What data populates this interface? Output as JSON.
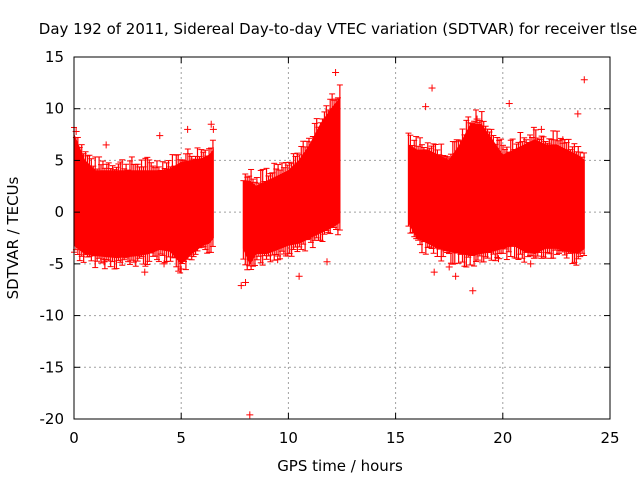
{
  "chart_data": {
    "type": "scatter",
    "title": "Day 192 of 2011, Sidereal Day-to-day VTEC variation (SDTVAR) for receiver tlse",
    "xlabel": "GPS time / hours",
    "ylabel": "SDTVAR / TECUs",
    "xlim": [
      0,
      25
    ],
    "ylim": [
      -20,
      15
    ],
    "xticks": [
      0,
      5,
      10,
      15,
      20,
      25
    ],
    "yticks": [
      -20,
      -15,
      -10,
      -5,
      0,
      5,
      10,
      15
    ],
    "grid": true,
    "marker": "plus",
    "color": "#ff0000",
    "envelope": [
      {
        "name": "segment-1",
        "x": [
          0.0,
          0.5,
          1.0,
          1.5,
          2.0,
          2.5,
          3.0,
          3.5,
          4.0,
          4.5,
          5.0,
          5.5,
          6.0,
          6.3,
          6.5
        ],
        "upper": [
          7.5,
          5.0,
          4.0,
          4.0,
          4.0,
          4.0,
          4.0,
          4.0,
          4.0,
          4.2,
          4.8,
          5.0,
          5.2,
          5.5,
          6.0
        ],
        "lower": [
          -3.2,
          -4.0,
          -4.2,
          -4.3,
          -4.4,
          -4.3,
          -4.2,
          -4.0,
          -3.6,
          -3.8,
          -5.0,
          -4.0,
          -3.2,
          -3.0,
          -2.5
        ]
      },
      {
        "name": "segment-2",
        "x": [
          7.9,
          8.2,
          8.5,
          9.0,
          9.5,
          10.0,
          10.5,
          11.0,
          11.5,
          12.0,
          12.4
        ],
        "upper": [
          3.0,
          3.0,
          2.5,
          3.0,
          3.5,
          4.0,
          5.0,
          6.5,
          8.5,
          10.0,
          11.0
        ],
        "lower": [
          -3.5,
          -5.0,
          -4.0,
          -4.0,
          -3.6,
          -3.2,
          -3.0,
          -2.5,
          -2.0,
          -1.5,
          -1.0
        ]
      },
      {
        "name": "segment-3",
        "x": [
          15.6,
          16.0,
          16.5,
          17.0,
          17.5,
          18.0,
          18.5,
          19.0,
          19.5,
          20.0,
          20.5,
          21.0,
          21.5,
          22.0,
          22.5,
          23.0,
          23.5,
          23.8
        ],
        "upper": [
          6.5,
          6.0,
          6.0,
          5.5,
          5.0,
          6.5,
          8.5,
          8.5,
          7.0,
          5.5,
          6.0,
          6.5,
          7.0,
          6.5,
          6.5,
          6.0,
          5.5,
          5.0
        ],
        "lower": [
          -1.0,
          -2.5,
          -3.0,
          -3.5,
          -3.8,
          -4.0,
          -4.2,
          -4.0,
          -3.8,
          -3.5,
          -3.2,
          -3.8,
          -4.0,
          -3.5,
          -3.5,
          -3.8,
          -4.0,
          -3.5
        ]
      }
    ],
    "outliers": [
      {
        "x": 8.2,
        "y": -19.6
      },
      {
        "x": 12.2,
        "y": 13.5
      },
      {
        "x": 23.8,
        "y": 12.8
      },
      {
        "x": 16.7,
        "y": 12.0
      },
      {
        "x": 18.6,
        "y": -7.6
      },
      {
        "x": 10.5,
        "y": -6.2
      },
      {
        "x": 16.8,
        "y": -5.8
      },
      {
        "x": 17.8,
        "y": -6.2
      },
      {
        "x": 7.8,
        "y": -7.1
      },
      {
        "x": 8.0,
        "y": -6.8
      },
      {
        "x": 3.3,
        "y": -5.8
      },
      {
        "x": 4.2,
        "y": -5.0
      },
      {
        "x": 1.4,
        "y": -4.8
      },
      {
        "x": 11.8,
        "y": -4.8
      },
      {
        "x": 11.8,
        "y": 6.5
      },
      {
        "x": 6.4,
        "y": 8.5
      },
      {
        "x": 6.5,
        "y": 8.0
      },
      {
        "x": 5.3,
        "y": 8.0
      },
      {
        "x": 4.0,
        "y": 7.4
      },
      {
        "x": 1.5,
        "y": 6.5
      },
      {
        "x": 0.1,
        "y": 7.8
      },
      {
        "x": 20.3,
        "y": 10.5
      },
      {
        "x": 16.4,
        "y": 10.2
      },
      {
        "x": 18.8,
        "y": 9.0
      },
      {
        "x": 21.8,
        "y": 8.0
      },
      {
        "x": 23.5,
        "y": 9.5
      },
      {
        "x": 22.8,
        "y": 7.0
      },
      {
        "x": 19.8,
        "y": -4.5
      },
      {
        "x": 21.3,
        "y": -5.0
      },
      {
        "x": 17.5,
        "y": -5.3
      },
      {
        "x": 5.0,
        "y": -5.5
      },
      {
        "x": 9.5,
        "y": -4.6
      }
    ]
  }
}
